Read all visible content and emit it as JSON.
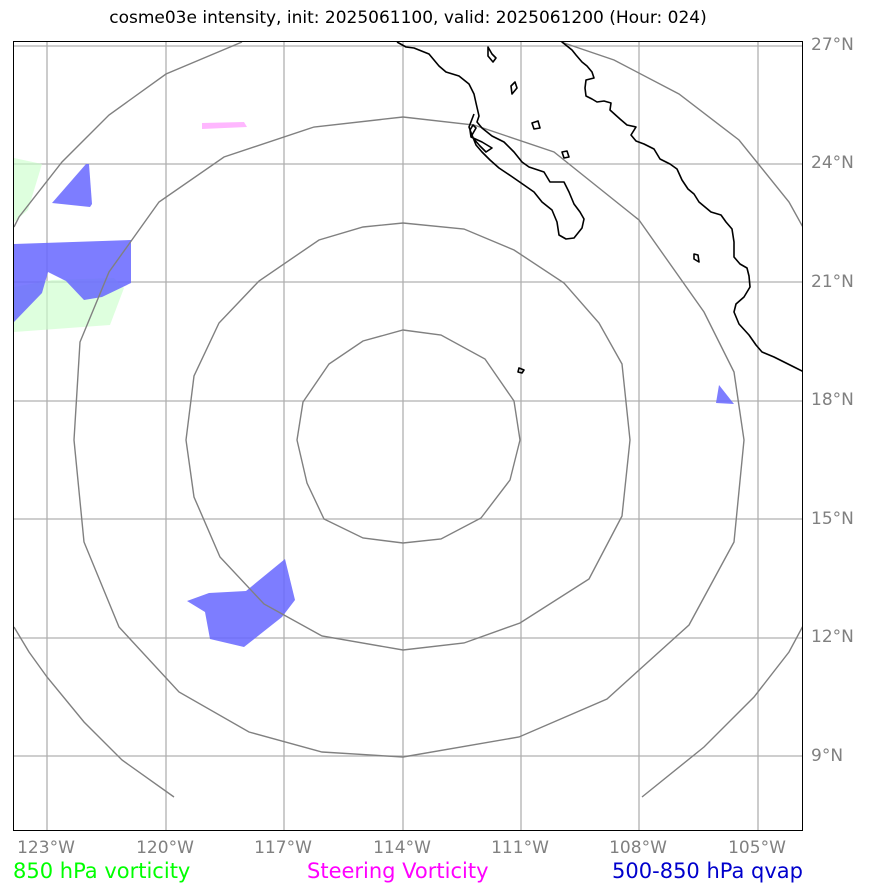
{
  "title": "cosme03e intensity, init: 2025061100, valid: 2025061200 (Hour: 024)",
  "lat_labels": [
    "27°N",
    "24°N",
    "21°N",
    "18°N",
    "15°N",
    "12°N",
    "9°N"
  ],
  "lon_labels": [
    "123°W",
    "120°W",
    "117°W",
    "114°W",
    "111°W",
    "108°W",
    "105°W"
  ],
  "legend": {
    "vort850": {
      "label": "850 hPa vorticity",
      "color": "#00ff00"
    },
    "steering": {
      "label": "Steering Vorticity",
      "color": "#ff00ff"
    },
    "qvap": {
      "label": "500-850 hPa qvap",
      "color": "#0000cc"
    }
  },
  "colors": {
    "gridlines": "#b0b0b0",
    "range_rings": "#808080",
    "coastline": "#000000",
    "vort850_fill": "#ccffcc",
    "steering_fill": "#ff99ff",
    "qvap_fill": "#6666ff"
  },
  "map": {
    "extent_lon": [
      -123.8,
      -103.8
    ],
    "extent_lat": [
      7.0,
      27.0
    ],
    "center_lat": 17.2,
    "center_lon": -114.0
  }
}
